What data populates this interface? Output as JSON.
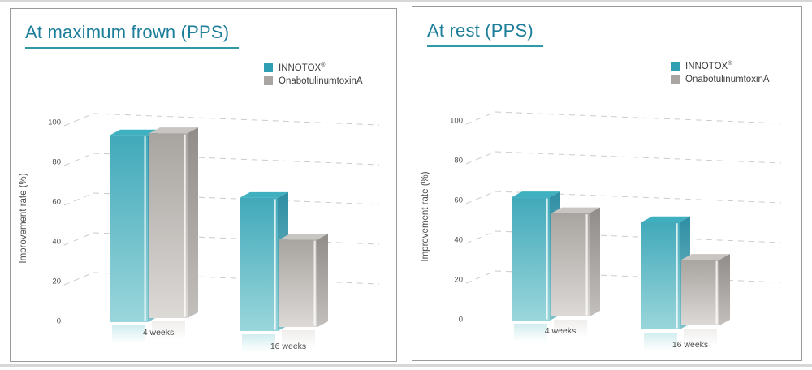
{
  "page": {
    "background": "#ffffff",
    "scan_edge_color": "#c9c9c9",
    "accent_color": "#1d7e9a"
  },
  "chart_data": [
    {
      "type": "bar",
      "variant": "3d-column-grouped",
      "title": "At maximum frown (PPS)",
      "title_color": "#1d7e9a",
      "underline_color": "#2e9aa8",
      "categories": [
        "4 weeks",
        "16 weeks"
      ],
      "series": [
        {
          "name": "INNOTOX",
          "mark": "®",
          "color": "#2f9fb4",
          "values": [
            94,
            67
          ],
          "front": [
            "#41a9ba",
            "#9ad6db"
          ],
          "side": [
            "#2f8ea3",
            "#7fc2ca"
          ],
          "top": "#3fb0c0"
        },
        {
          "name": "OnabotulinumtoxinA",
          "mark": "",
          "color": "#a9a5a2",
          "values": [
            93,
            44
          ],
          "front": [
            "#a8a4a0",
            "#dcd9d6"
          ],
          "side": [
            "#908c89",
            "#c2bfbc"
          ],
          "top": "#c8c5c2"
        }
      ],
      "ylabel": "Improvement rate (%)",
      "yticks": [
        0,
        20,
        40,
        60,
        80,
        100
      ],
      "ylim": [
        0,
        100
      ],
      "grid": "dashed-3d",
      "legend_position": "top-right"
    },
    {
      "type": "bar",
      "variant": "3d-column-grouped",
      "title": "At rest (PPS)",
      "title_color": "#1d7e9a",
      "underline_color": "#2e9aa8",
      "categories": [
        "4 weeks",
        "16 weeks"
      ],
      "series": [
        {
          "name": "INNOTOX",
          "mark": "®",
          "color": "#2f9fb4",
          "values": [
            62,
            54
          ],
          "front": [
            "#41a9ba",
            "#9ad6db"
          ],
          "side": [
            "#2f8ea3",
            "#7fc2ca"
          ],
          "top": "#3fb0c0"
        },
        {
          "name": "OnabotulinumtoxinA",
          "mark": "",
          "color": "#a9a5a2",
          "values": [
            52,
            33
          ],
          "front": [
            "#a8a4a0",
            "#dcd9d6"
          ],
          "side": [
            "#908c89",
            "#c2bfbc"
          ],
          "top": "#c8c5c2"
        }
      ],
      "ylabel": "Improvement rate (%)",
      "yticks": [
        0,
        20,
        40,
        60,
        80,
        100
      ],
      "ylim": [
        0,
        100
      ],
      "grid": "dashed-3d",
      "legend_position": "top-right"
    }
  ]
}
